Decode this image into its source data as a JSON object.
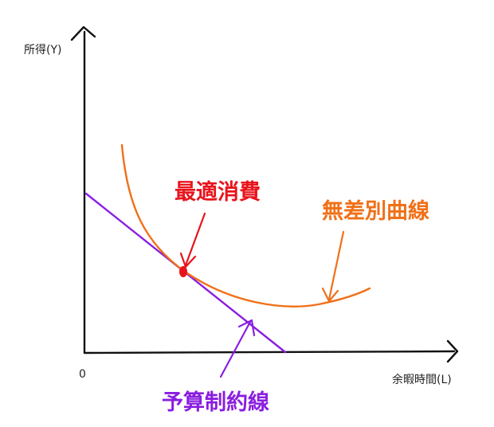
{
  "labels": {
    "y_axis": "所得(Y)",
    "x_axis": "余暇時間(L)",
    "origin": "0",
    "optimal": "最適消費",
    "indifference": "無差別曲線",
    "budget": "予算制約線"
  },
  "colors": {
    "axis": "#111111",
    "optimal": "#e8141c",
    "indifference": "#f07018",
    "budget": "#8a1ee0",
    "point": "#e8141c"
  }
}
